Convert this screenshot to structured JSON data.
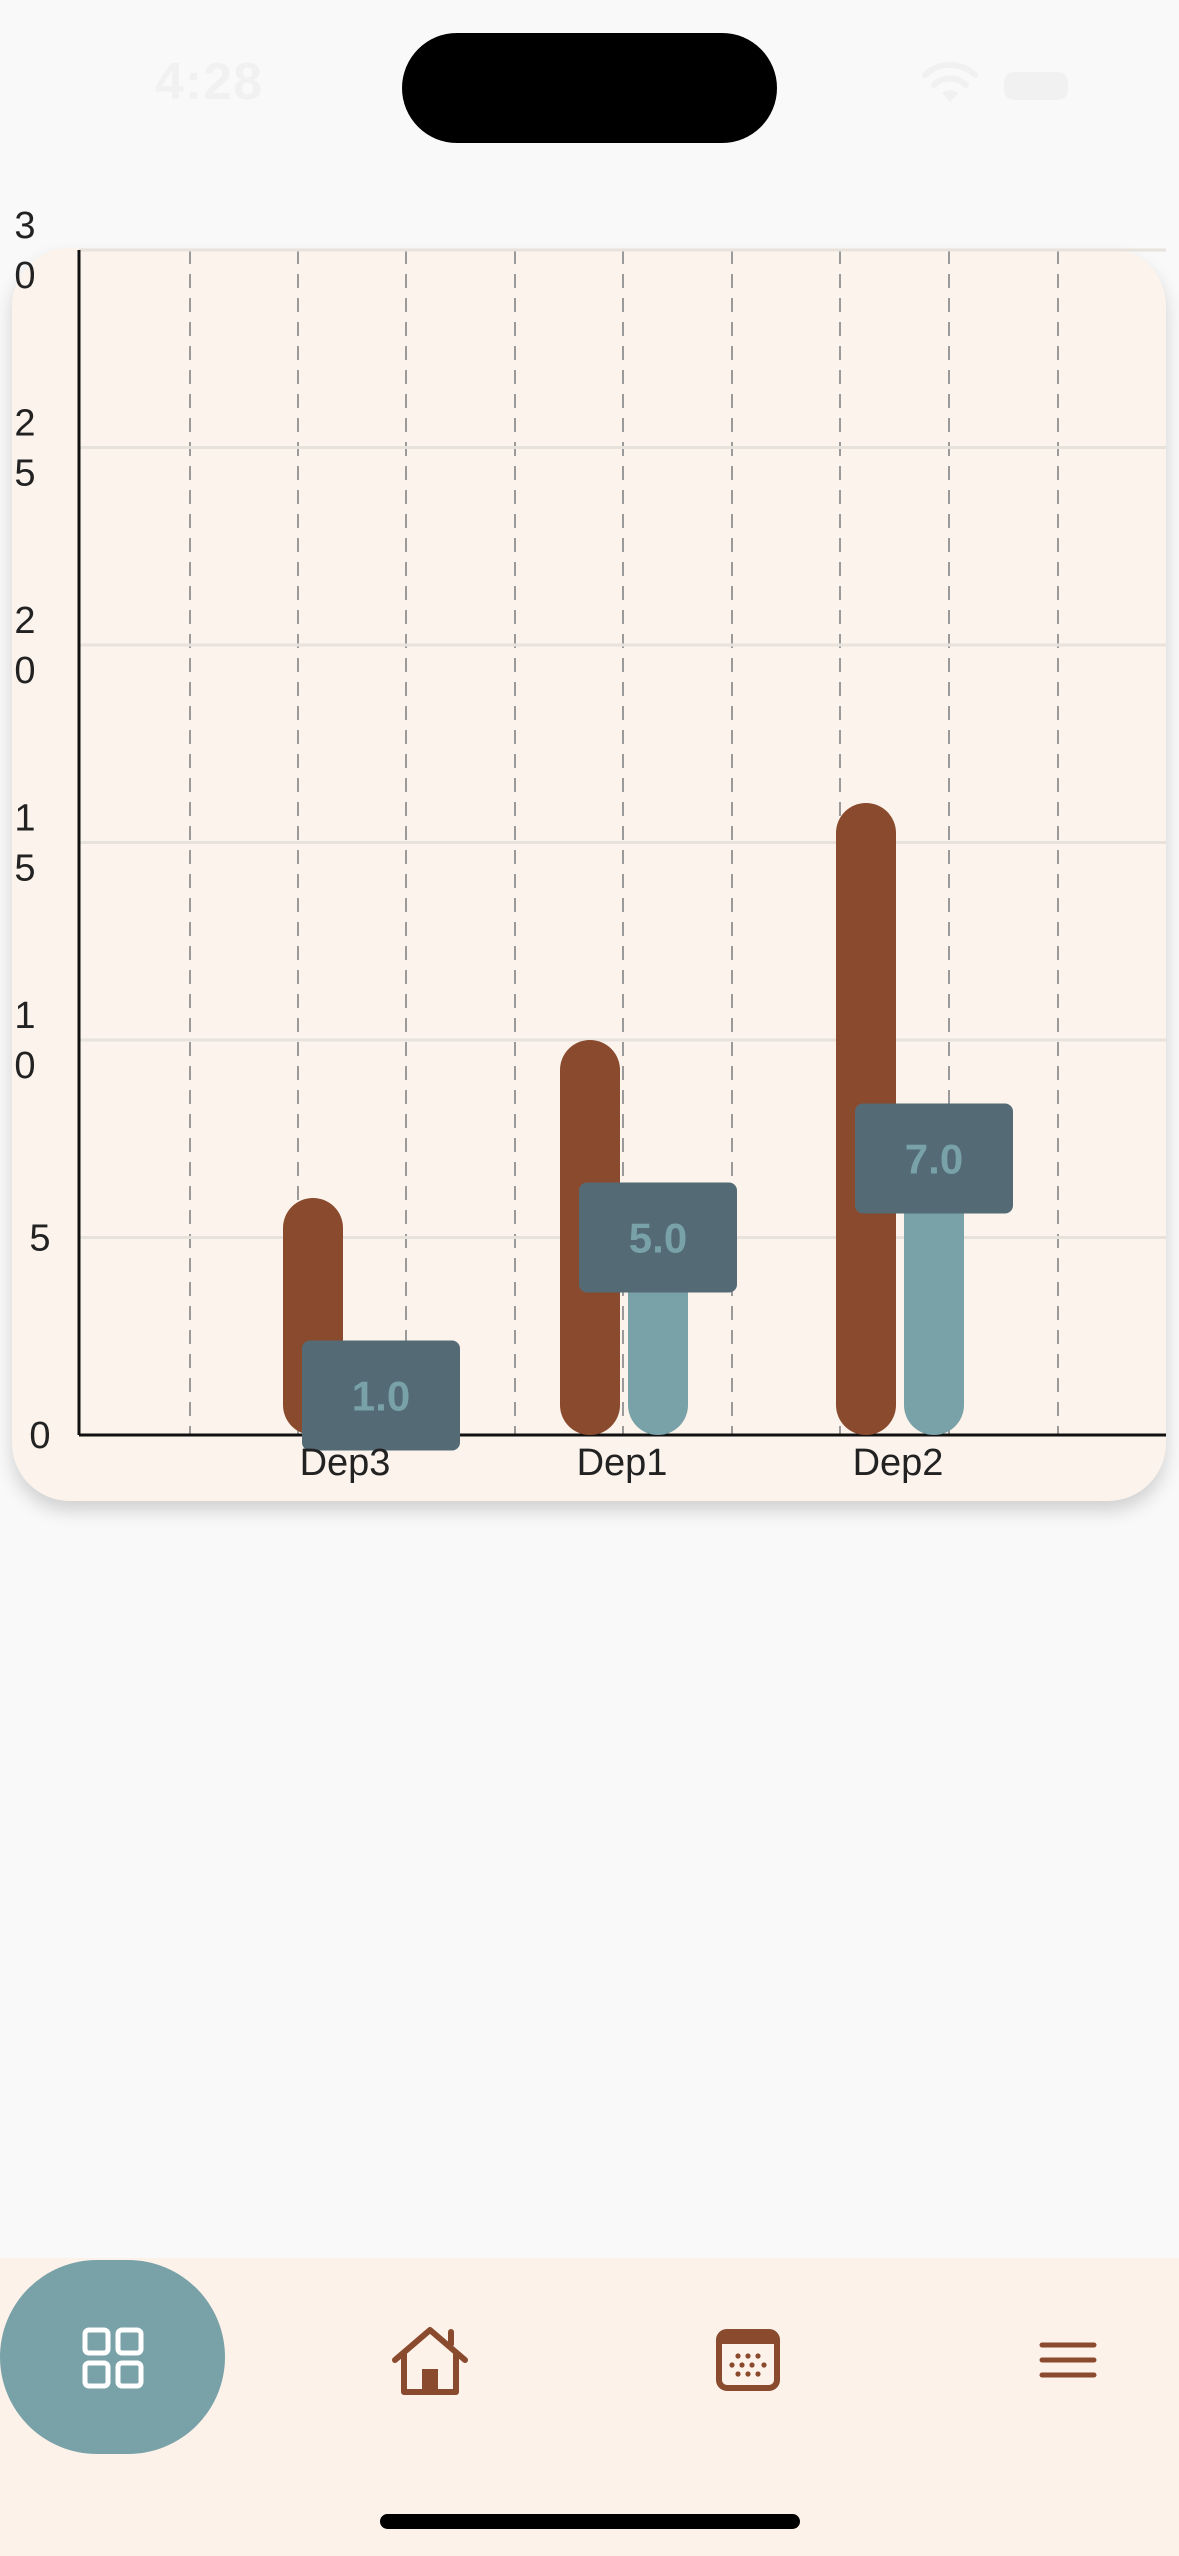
{
  "status_bar": {
    "time": "4:28"
  },
  "chart_data": {
    "type": "bar",
    "categories": [
      "Dep3",
      "Dep1",
      "Dep2"
    ],
    "series": [
      {
        "values": [
          6,
          10,
          16
        ],
        "color": "#8a4a2d"
      },
      {
        "values": [
          1,
          5,
          7
        ],
        "color": "#79a1a8"
      }
    ],
    "tooltip_labels": [
      "1.0",
      "5.0",
      "7.0"
    ],
    "y_ticks": [
      "0",
      "5",
      "10",
      "15",
      "20",
      "25",
      "30"
    ],
    "ylim": [
      0,
      30
    ],
    "grid": true,
    "colors": {
      "card": "#fbf3ec",
      "tooltip_bg": "#546b75",
      "tooltip_text": "#79a1a8",
      "grid_h": "#e8e2dc",
      "grid_v": "#9a9a9a"
    }
  },
  "bottom_nav": {
    "items": [
      {
        "icon": "grid-icon",
        "active": true
      },
      {
        "icon": "home-icon",
        "active": false
      },
      {
        "icon": "calendar-icon",
        "active": false
      },
      {
        "icon": "menu-icon",
        "active": false
      }
    ],
    "colors": {
      "active_bg": "#79a1a8",
      "icon": "#8a4a2d",
      "active_icon": "#ffffff"
    }
  }
}
